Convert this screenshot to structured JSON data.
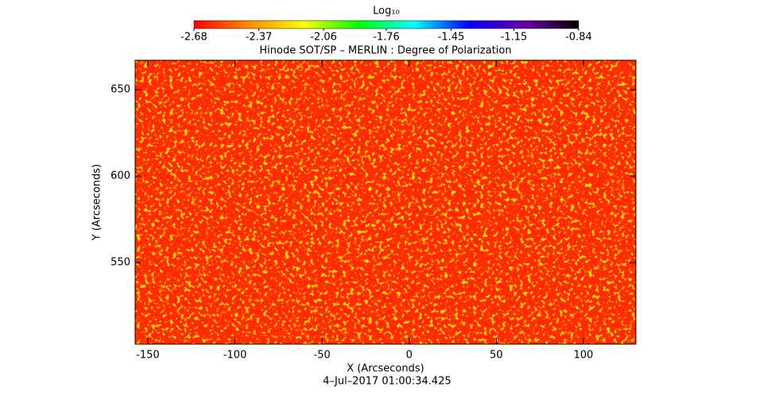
{
  "chart_data": {
    "type": "heatmap",
    "title": "Hinode SOT/SP – MERLIN : Degree of Polarization",
    "xlabel": "X (Arcseconds)",
    "ylabel": "Y (Arcseconds)",
    "footer": "4–Jul–2017 01:00:34.425",
    "xlim": [
      -157.3,
      130.1
    ],
    "xticks": [
      -150,
      -100,
      -50,
      0,
      50,
      100
    ],
    "ylim": [
      502.8,
      667
    ],
    "yticks": [
      550,
      600,
      650
    ],
    "colorbar": {
      "label": "Log₁₀",
      "zlim": [
        -2.68,
        -0.84
      ],
      "ticks": [
        -2.68,
        -2.37,
        -2.06,
        -1.76,
        -1.45,
        -1.15,
        -0.84
      ],
      "colors": [
        "#ff0000",
        "#ff8c00",
        "#ffff00",
        "#00ff00",
        "#00ffff",
        "#0000ff",
        "#6a00a8",
        "#000000"
      ]
    }
  }
}
